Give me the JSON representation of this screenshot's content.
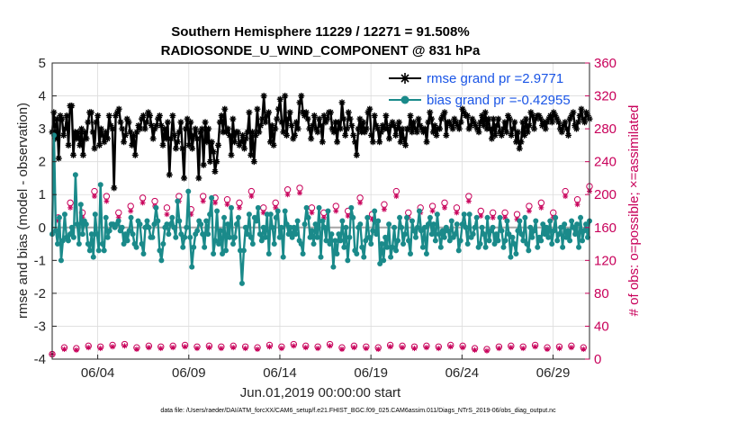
{
  "chart_data": {
    "type": "line",
    "title_line1": "Southern Hemisphere 11229 / 12271 = 91.508%",
    "title_line2": "RADIOSONDE_U_WIND_COMPONENT @ 831 hPa",
    "xlabel": "Jun.01,2019 00:00:00 start",
    "ylabel": "rmse and bias (model - observation)",
    "ylabel_right": "# of obs: o=possible; ×=assimilated",
    "x_range": [
      1.5,
      31.0
    ],
    "ylim": [
      -4,
      5
    ],
    "ylim_right": [
      0,
      360
    ],
    "x_ticks": [
      {
        "x": 4,
        "label": "06/04"
      },
      {
        "x": 9,
        "label": "06/09"
      },
      {
        "x": 14,
        "label": "06/14"
      },
      {
        "x": 19,
        "label": "06/19"
      },
      {
        "x": 24,
        "label": "06/24"
      },
      {
        "x": 29,
        "label": "06/29"
      }
    ],
    "y_ticks": [
      {
        "v": 5,
        "label": "5"
      },
      {
        "v": 4,
        "label": "4"
      },
      {
        "v": 3,
        "label": "3"
      },
      {
        "v": 2,
        "label": "2"
      },
      {
        "v": 1,
        "label": "1"
      },
      {
        "v": 0,
        "label": "0"
      },
      {
        "v": -1,
        "label": "-1"
      },
      {
        "v": -2,
        "label": "-2"
      },
      {
        "v": -3,
        "label": "-3"
      },
      {
        "v": -4,
        "label": "-4"
      }
    ],
    "y_ticks_right": [
      {
        "v": 0,
        "label": "0"
      },
      {
        "v": 40,
        "label": "40"
      },
      {
        "v": 80,
        "label": "80"
      },
      {
        "v": 120,
        "label": "120"
      },
      {
        "v": 160,
        "label": "160"
      },
      {
        "v": 200,
        "label": "200"
      },
      {
        "v": 240,
        "label": "240"
      },
      {
        "v": 280,
        "label": "280"
      },
      {
        "v": 320,
        "label": "320"
      },
      {
        "v": 360,
        "label": "360"
      }
    ],
    "grid": true,
    "legend_position": "top-right",
    "series": [
      {
        "name": "rmse",
        "legend": "rmse grand pr =2.9771",
        "color": "#000000",
        "values": [
          2.9,
          3.5,
          2.7,
          3.3,
          2.1,
          3.4,
          3.3,
          2.8,
          3.0,
          3.4,
          2.5,
          3.7,
          3.7,
          2.2,
          2.9,
          2.7,
          2.9,
          2.5,
          3.0,
          2.2,
          2.9,
          2.7,
          3.2,
          3.5,
          3.5,
          2.9,
          2.4,
          3.2,
          3.4,
          2.5,
          3.0,
          2.8,
          2.6,
          2.9,
          2.7,
          3.4,
          3.1,
          3.0,
          1.2,
          3.4,
          3.5,
          3.6,
          3.2,
          3.0,
          2.6,
          2.8,
          3.3,
          3.2,
          2.9,
          2.5,
          2.8,
          2.2,
          2.9,
          3.1,
          3.0,
          3.3,
          3.4,
          3.0,
          3.2,
          3.5,
          3.4,
          3.1,
          2.7,
          3.0,
          3.1,
          3.3,
          3.4,
          3.1,
          2.5,
          3.0,
          2.7,
          3.2,
          1.6,
          2.7,
          3.4,
          2.8,
          2.4,
          2.6,
          2.9,
          3.2,
          2.4,
          1.5,
          3.0,
          3.3,
          2.5,
          3.2,
          2.4,
          2.8,
          3.0,
          2.7,
          1.5,
          2.9,
          3.0,
          1.9,
          3.2,
          2.6,
          3.0,
          2.0,
          2.6,
          2.3,
          1.7,
          2.0,
          2.5,
          3.2,
          3.4,
          2.9,
          3.6,
          2.9,
          3.0,
          2.8,
          2.2,
          3.3,
          2.6,
          2.9,
          2.9,
          2.5,
          2.6,
          2.8,
          2.4,
          2.7,
          2.9,
          3.5,
          2.2,
          2.9,
          2.0,
          2.8,
          3.6,
          2.9,
          3.1,
          3.3,
          4.0,
          3.2,
          3.4,
          3.5,
          2.6,
          3.1,
          2.5,
          3.0,
          3.3,
          3.6,
          3.9,
          3.2,
          2.9,
          4.0,
          2.8,
          3.3,
          3.5,
          3.1,
          2.7,
          2.8,
          3.2,
          3.0,
          3.8,
          4.0,
          3.5,
          3.4,
          3.5,
          3.3,
          3.0,
          2.7,
          3.1,
          3.4,
          3.0,
          2.9,
          3.3,
          3.1,
          2.6,
          3.4,
          3.2,
          3.3,
          3.5,
          3.5,
          3.0,
          2.9,
          3.2,
          2.6,
          3.2,
          3.0,
          3.8,
          3.3,
          2.8,
          3.0,
          3.5,
          3.3,
          3.1,
          2.8,
          2.6,
          2.2,
          3.0,
          3.3,
          2.9,
          3.2,
          2.9,
          3.0,
          3.5,
          3.6,
          2.8,
          2.6,
          3.4,
          3.1,
          3.0,
          2.6,
          2.9,
          3.1,
          3.0,
          3.4,
          3.0,
          2.7,
          3.1,
          3.2,
          3.1,
          2.8,
          3.0,
          3.2,
          2.6,
          3.0,
          2.7,
          2.5,
          3.0,
          3.0,
          3.4,
          2.9,
          3.2,
          3.0,
          2.9,
          3.3,
          3.1,
          3.0,
          2.9,
          3.0,
          2.6,
          3.2,
          3.5,
          3.3,
          2.9,
          3.1,
          2.8,
          3.0,
          3.0,
          3.3,
          3.4,
          3.5,
          2.8,
          3.2,
          3.2,
          3.1,
          3.0,
          3.3,
          3.2,
          3.1,
          3.0,
          3.2,
          3.6,
          3.5,
          3.4,
          3.4,
          3.0,
          3.1,
          3.3,
          3.2,
          3.1,
          3.0,
          2.9,
          3.2,
          3.4,
          3.1,
          3.5,
          3.0,
          3.3,
          3.0,
          2.7,
          3.3,
          2.8,
          3.1,
          3.3,
          2.9,
          2.8,
          3.0,
          3.2,
          2.9,
          3.4,
          3.3,
          2.8,
          3.0,
          3.2,
          2.6,
          2.9,
          2.4,
          2.6,
          3.2,
          2.8,
          3.3,
          2.9,
          3.1,
          3.5,
          3.4,
          3.0,
          3.3,
          3.4,
          3.4,
          3.3,
          3.1,
          3.2,
          3.0,
          3.2,
          3.3,
          3.4,
          3.2,
          3.5,
          3.4,
          3.3,
          3.2,
          3.0,
          2.9,
          3.1,
          3.2,
          3.0,
          2.8,
          3.3,
          3.4,
          3.5,
          3.1,
          3.0,
          3.2,
          3.4,
          3.6,
          3.3,
          3.2,
          3.5,
          3.4,
          3.3
        ]
      },
      {
        "name": "bias",
        "legend": "bias grand pr =-0.42955",
        "color": "#1a8a8a",
        "values": [
          -0.2,
          2.8,
          -0.1,
          -0.5,
          0.3,
          -1.0,
          -0.4,
          0.4,
          -0.3,
          -0.4,
          -0.2,
          0.0,
          -0.3,
          1.6,
          0.1,
          -0.5,
          0.7,
          -0.2,
          0.2,
          0.1,
          -0.5,
          -0.7,
          -0.2,
          -0.9,
          0.4,
          -0.2,
          -0.7,
          1.3,
          -0.5,
          -0.7,
          0.3,
          -0.3,
          -0.1,
          0.1,
          0.1,
          0.0,
          0.1,
          0.2,
          -0.1,
          0.0,
          -0.5,
          -0.2,
          -0.4,
          -0.1,
          0.3,
          -0.2,
          -0.5,
          -0.6,
          0.2,
          0.1,
          -0.5,
          -0.8,
          0.0,
          0.2,
          0.0,
          -0.3,
          -0.3,
          0.1,
          0.6,
          0.2,
          -0.7,
          -1.0,
          -0.5,
          0.0,
          0.1,
          -0.2,
          0.1,
          0.3,
          0.0,
          -0.3,
          0.8,
          0.2,
          -0.2,
          -0.6,
          -0.3,
          0.0,
          1.1,
          -0.3,
          -1.2,
          -0.6,
          -0.2,
          -0.1,
          0.2,
          0.1,
          -0.2,
          -0.6,
          0.2,
          -0.2,
          0.4,
          0.9,
          -0.8,
          -0.4,
          0.5,
          -0.5,
          -0.1,
          -0.8,
          0.3,
          -0.7,
          0.1,
          -0.3,
          0.6,
          -0.5,
          -0.3,
          0.1,
          0.3,
          -0.7,
          -1.7,
          -0.7,
          0.0,
          -0.2,
          0.4,
          -0.3,
          -0.5,
          0.3,
          0.2,
          0.6,
          -0.2,
          -0.4,
          0.0,
          -0.3,
          0.4,
          -0.8,
          0.4,
          0.0,
          -0.5,
          0.3,
          0.5,
          -0.3,
          0.0,
          -0.9,
          0.5,
          0.1,
          -0.2,
          0.0,
          -0.3,
          0.0,
          -0.2,
          0.2,
          -0.4,
          -0.5,
          -0.8,
          0.1,
          0.6,
          0.3,
          -0.3,
          -0.1,
          -0.5,
          0.1,
          -0.3,
          0.6,
          -0.9,
          0.2,
          0.0,
          -0.4,
          0.5,
          -0.5,
          -0.2,
          -1.2,
          -0.4,
          -0.8,
          -0.2,
          -0.4,
          0.2,
          -0.6,
          0.0,
          -1.0,
          -0.3,
          0.6,
          0.3,
          -0.7,
          -0.8,
          0.0,
          0.1,
          -0.6,
          -0.9,
          -0.4,
          0.3,
          -0.3,
          -0.5,
          -0.1,
          0.5,
          -0.2,
          0.2,
          -1.1,
          -0.5,
          -1.0,
          -0.3,
          -0.6,
          0.1,
          -0.9,
          -0.6,
          0.0,
          -0.7,
          -0.4,
          0.3,
          0.0,
          -0.5,
          -0.2,
          0.3,
          -0.4,
          -0.8,
          0.2,
          -0.1,
          -0.3,
          0.0,
          0.5,
          -0.1,
          -0.6,
          0.0,
          -0.8,
          0.1,
          0.3,
          -0.2,
          0.1,
          -0.4,
          0.4,
          -0.2,
          -0.6,
          -0.1,
          -0.3,
          0.0,
          -0.1,
          -0.4,
          0.2,
          -0.3,
          -0.2,
          0.1,
          -0.7,
          -0.4,
          0.1,
          0.4,
          0.0,
          -0.5,
          0.4,
          -0.3,
          -0.2,
          0.0,
          0.3,
          -0.6,
          -0.5,
          0.0,
          -0.2,
          -0.6,
          0.3,
          -0.4,
          -0.1,
          0.0,
          -0.5,
          -0.2,
          -0.4,
          0.3,
          -0.1,
          -0.6,
          -0.4,
          0.2,
          -0.2,
          -0.9,
          -0.3,
          -0.5,
          -0.8,
          -0.1,
          0.2,
          -0.2,
          -0.4,
          0.3,
          -0.5,
          -0.7,
          0.0,
          -0.3,
          -0.1,
          0.2,
          -0.6,
          -0.3,
          -0.4,
          0.1,
          -0.2,
          0.0,
          -0.3,
          0.2,
          -0.5,
          -0.1,
          0.3,
          -0.4,
          -0.2,
          0.0,
          -0.6,
          0.1,
          -0.3,
          -0.1,
          -0.4,
          0.2,
          0.0,
          -0.2,
          0.1,
          -0.6,
          0.3,
          -0.4,
          -0.1,
          0.1,
          -0.3,
          0.2
        ]
      },
      {
        "name": "obs possible",
        "marker": "o",
        "color": "#c8005a",
        "axis": "right",
        "values": [
          6,
          172,
          14,
          190,
          13,
          178,
          16,
          204,
          15,
          198,
          17,
          178,
          18,
          186,
          14,
          196,
          16,
          192,
          15,
          184,
          16,
          198,
          17,
          182,
          15,
          198,
          16,
          196,
          15,
          194,
          16,
          190,
          15,
          204,
          14,
          184,
          17,
          190,
          15,
          206,
          18,
          208,
          16,
          184,
          15,
          178,
          18,
          186,
          14,
          180,
          16,
          196,
          15,
          176,
          14,
          188,
          17,
          204,
          16,
          178,
          15,
          184,
          16,
          186,
          15,
          190,
          17,
          184,
          16,
          198,
          13,
          180,
          12,
          178,
          15,
          178,
          16,
          176,
          15,
          186,
          17,
          190,
          14,
          178,
          15,
          204,
          16,
          194,
          14,
          210
        ]
      },
      {
        "name": "obs assimilated",
        "marker": "*",
        "color": "#c8005a",
        "axis": "right",
        "values": [
          6,
          168,
          12,
          184,
          11,
          172,
          14,
          198,
          13,
          192,
          15,
          172,
          16,
          180,
          12,
          190,
          14,
          186,
          13,
          176,
          14,
          192,
          15,
          176,
          13,
          192,
          14,
          190,
          13,
          188,
          14,
          184,
          13,
          198,
          12,
          178,
          15,
          184,
          13,
          200,
          16,
          202,
          14,
          178,
          13,
          172,
          16,
          180,
          12,
          174,
          14,
          190,
          13,
          170,
          12,
          182,
          15,
          198,
          14,
          172,
          13,
          178,
          14,
          180,
          13,
          184,
          15,
          178,
          14,
          192,
          11,
          174,
          10,
          172,
          13,
          172,
          14,
          170,
          13,
          180,
          15,
          184,
          12,
          172,
          13,
          198,
          14,
          188,
          12,
          204
        ]
      }
    ],
    "footnote": "data file: /Users/raeder/DAI/ATM_forcXX/CAM6_setup/f.e21.FHIST_BGC.f09_025.CAM6assim.011/Diags_NTrS_2019-06/obs_diag_output.nc"
  }
}
